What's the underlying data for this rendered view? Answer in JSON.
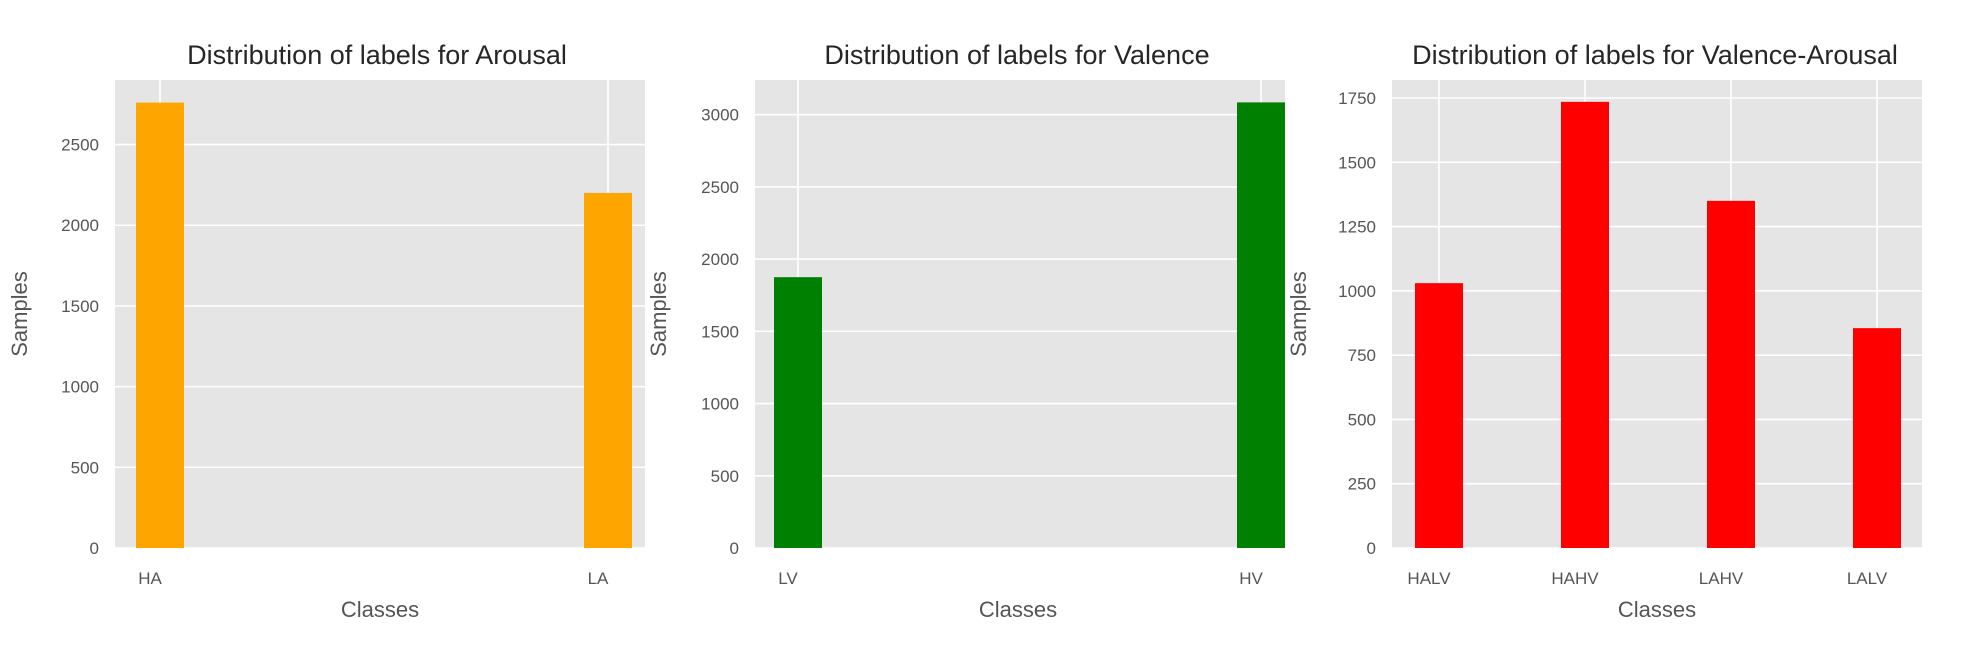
{
  "chart_data": [
    {
      "type": "bar",
      "title": "Distribution of labels for Arousal",
      "xlabel": "Classes",
      "ylabel": "Samples",
      "categories": [
        "HA",
        "LA"
      ],
      "values": [
        2760,
        2200
      ],
      "yticks": [
        0,
        500,
        1000,
        1500,
        2000,
        2500
      ],
      "ylim": [
        0,
        2900
      ],
      "color": "#ffa500",
      "grid": true
    },
    {
      "type": "bar",
      "title": "Distribution of labels for Valence",
      "xlabel": "Classes",
      "ylabel": "Samples",
      "categories": [
        "LV",
        "HV"
      ],
      "values": [
        1875,
        3085
      ],
      "yticks": [
        0,
        500,
        1000,
        1500,
        2000,
        2500,
        3000
      ],
      "ylim": [
        0,
        3240
      ],
      "color": "#008000",
      "grid": true
    },
    {
      "type": "bar",
      "title": "Distribution of labels for Valence-Arousal",
      "xlabel": "Classes",
      "ylabel": "Samples",
      "categories": [
        "HALV",
        "HAHV",
        "LAHV",
        "LALV"
      ],
      "values": [
        1030,
        1735,
        1350,
        855
      ],
      "yticks": [
        0,
        250,
        500,
        750,
        1000,
        1250,
        1500,
        1750
      ],
      "ylim": [
        0,
        1820
      ],
      "color": "#ff0000",
      "grid": true
    }
  ]
}
